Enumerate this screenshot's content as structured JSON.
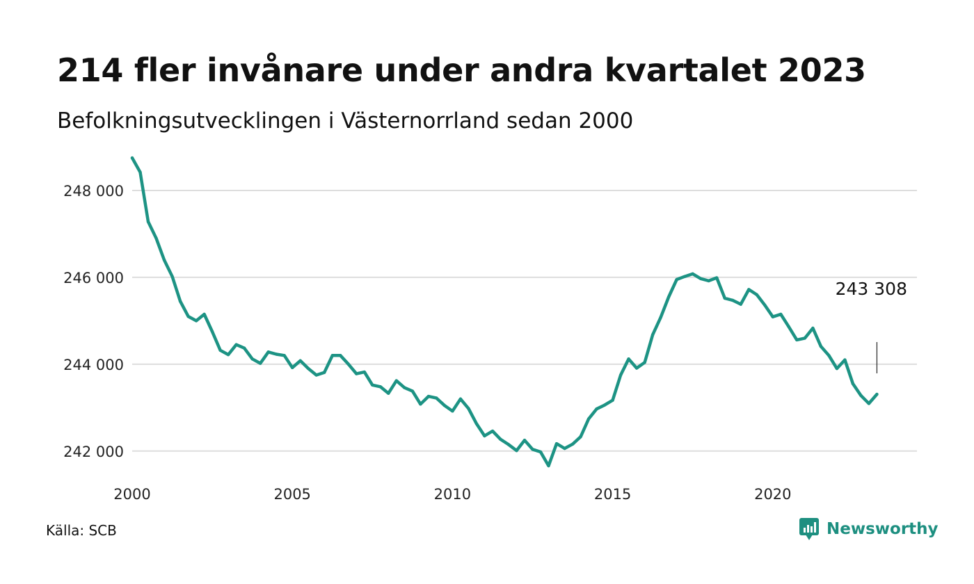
{
  "header": {
    "title": "214 fler invånare under andra kvartalet 2023",
    "subtitle": "Befolkningsutvecklingen i Västernorrland sedan 2000"
  },
  "footer": {
    "source": "Källa: SCB",
    "brand": "Newsworthy",
    "brand_icon": "newsworthy-logo-icon"
  },
  "colors": {
    "line": "#1d9384",
    "grid": "#dddddd",
    "brand": "#1d8f80"
  },
  "chart_data": {
    "type": "line",
    "title": "214 fler invånare under andra kvartalet 2023",
    "subtitle": "Befolkningsutvecklingen i Västernorrland sedan 2000",
    "xlabel": "",
    "ylabel": "",
    "xlim": [
      2000,
      2024.5
    ],
    "ylim": [
      241500,
      248800
    ],
    "grid": "horizontal",
    "legend": "none",
    "x_ticks": [
      {
        "value": 2000,
        "label": "2000"
      },
      {
        "value": 2005,
        "label": "2005"
      },
      {
        "value": 2010,
        "label": "2010"
      },
      {
        "value": 2015,
        "label": "2015"
      },
      {
        "value": 2020,
        "label": "2020"
      }
    ],
    "y_ticks": [
      {
        "value": 242000,
        "label": "242 000"
      },
      {
        "value": 244000,
        "label": "244 000"
      },
      {
        "value": 246000,
        "label": "246 000"
      },
      {
        "value": 248000,
        "label": "248 000"
      }
    ],
    "series": [
      {
        "values": [
          [
            2000.0,
            248750
          ],
          [
            2000.25,
            248420
          ],
          [
            2000.5,
            247280
          ],
          [
            2000.75,
            246900
          ],
          [
            2001.0,
            246400
          ],
          [
            2001.25,
            246020
          ],
          [
            2001.5,
            245450
          ],
          [
            2001.75,
            245100
          ],
          [
            2002.0,
            245000
          ],
          [
            2002.25,
            245150
          ],
          [
            2002.5,
            244750
          ],
          [
            2002.75,
            244320
          ],
          [
            2003.0,
            244220
          ],
          [
            2003.25,
            244450
          ],
          [
            2003.5,
            244370
          ],
          [
            2003.75,
            244120
          ],
          [
            2004.0,
            244020
          ],
          [
            2004.25,
            244280
          ],
          [
            2004.5,
            244230
          ],
          [
            2004.75,
            244200
          ],
          [
            2005.0,
            243920
          ],
          [
            2005.25,
            244080
          ],
          [
            2005.5,
            243900
          ],
          [
            2005.75,
            243750
          ],
          [
            2006.0,
            243810
          ],
          [
            2006.25,
            244200
          ],
          [
            2006.5,
            244200
          ],
          [
            2006.75,
            244000
          ],
          [
            2007.0,
            243780
          ],
          [
            2007.25,
            243820
          ],
          [
            2007.5,
            243520
          ],
          [
            2007.75,
            243480
          ],
          [
            2008.0,
            243330
          ],
          [
            2008.25,
            243620
          ],
          [
            2008.5,
            243460
          ],
          [
            2008.75,
            243380
          ],
          [
            2009.0,
            243080
          ],
          [
            2009.25,
            243260
          ],
          [
            2009.5,
            243220
          ],
          [
            2009.75,
            243050
          ],
          [
            2010.0,
            242920
          ],
          [
            2010.25,
            243200
          ],
          [
            2010.5,
            242980
          ],
          [
            2010.75,
            242630
          ],
          [
            2011.0,
            242350
          ],
          [
            2011.25,
            242460
          ],
          [
            2011.5,
            242270
          ],
          [
            2011.75,
            242150
          ],
          [
            2012.0,
            242010
          ],
          [
            2012.25,
            242250
          ],
          [
            2012.5,
            242040
          ],
          [
            2012.75,
            241980
          ],
          [
            2013.0,
            241660
          ],
          [
            2013.25,
            242170
          ],
          [
            2013.5,
            242060
          ],
          [
            2013.75,
            242160
          ],
          [
            2014.0,
            242330
          ],
          [
            2014.25,
            242740
          ],
          [
            2014.5,
            242970
          ],
          [
            2014.75,
            243060
          ],
          [
            2015.0,
            243170
          ],
          [
            2015.25,
            243750
          ],
          [
            2015.5,
            244120
          ],
          [
            2015.75,
            243910
          ],
          [
            2016.0,
            244040
          ],
          [
            2016.25,
            244680
          ],
          [
            2016.5,
            245080
          ],
          [
            2016.75,
            245550
          ],
          [
            2017.0,
            245950
          ],
          [
            2017.25,
            246020
          ],
          [
            2017.5,
            246080
          ],
          [
            2017.75,
            245970
          ],
          [
            2018.0,
            245920
          ],
          [
            2018.25,
            245990
          ],
          [
            2018.5,
            245520
          ],
          [
            2018.75,
            245470
          ],
          [
            2019.0,
            245380
          ],
          [
            2019.25,
            245720
          ],
          [
            2019.5,
            245600
          ],
          [
            2019.75,
            245360
          ],
          [
            2020.0,
            245090
          ],
          [
            2020.25,
            245150
          ],
          [
            2020.5,
            244860
          ],
          [
            2020.75,
            244560
          ],
          [
            2021.0,
            244600
          ],
          [
            2021.25,
            244830
          ],
          [
            2021.5,
            244410
          ],
          [
            2021.75,
            244200
          ],
          [
            2022.0,
            243900
          ],
          [
            2022.25,
            244100
          ],
          [
            2022.5,
            243550
          ],
          [
            2022.75,
            243280
          ],
          [
            2023.0,
            243094
          ],
          [
            2023.25,
            243308
          ]
        ]
      }
    ],
    "annotations": [
      {
        "x": 2023.25,
        "y": 243308,
        "text": "243 308"
      }
    ]
  }
}
